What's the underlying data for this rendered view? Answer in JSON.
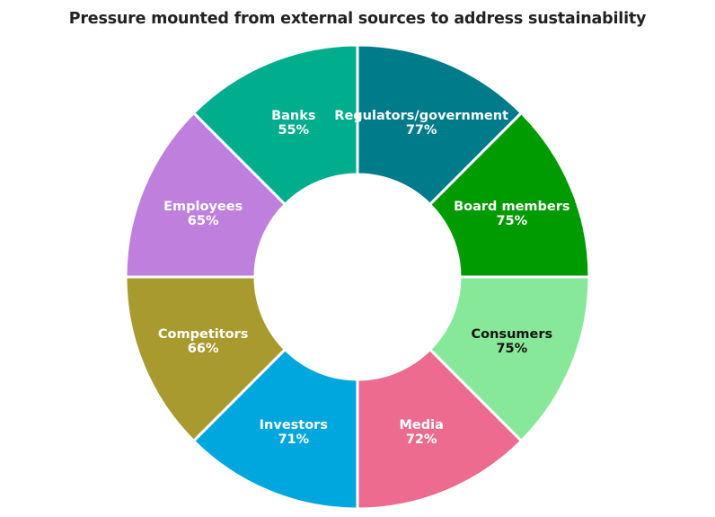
{
  "chart_data": {
    "type": "pie",
    "variant": "donut",
    "title": "Pressure mounted from external sources to address sustainability",
    "start": "12 o'clock",
    "direction": "clockwise",
    "equal_slices": true,
    "slices": [
      {
        "label": "Regulators/government",
        "value_label": "77%",
        "value": 77,
        "color": "#007b8a",
        "text_color": "#ffffff"
      },
      {
        "label": "Board members",
        "value_label": "75%",
        "value": 75,
        "color": "#009b00",
        "text_color": "#ffffff"
      },
      {
        "label": "Consumers",
        "value_label": "75%",
        "value": 75,
        "color": "#88e89a",
        "text_color": "#111111"
      },
      {
        "label": "Media",
        "value_label": "72%",
        "value": 72,
        "color": "#ec6b8f",
        "text_color": "#ffffff"
      },
      {
        "label": "Investors",
        "value_label": "71%",
        "value": 71,
        "color": "#00a6de",
        "text_color": "#ffffff"
      },
      {
        "label": "Competitors",
        "value_label": "66%",
        "value": 66,
        "color": "#a89a2f",
        "text_color": "#ffffff"
      },
      {
        "label": "Employees",
        "value_label": "65%",
        "value": 65,
        "color": "#bf80dd",
        "text_color": "#ffffff"
      },
      {
        "label": "Banks",
        "value_label": "55%",
        "value": 55,
        "color": "#00ad8c",
        "text_color": "#ffffff"
      }
    ]
  }
}
